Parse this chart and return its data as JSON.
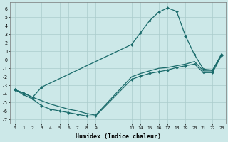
{
  "xlabel": "Humidex (Indice chaleur)",
  "bg_color": "#cce8e8",
  "grid_color": "#aacccc",
  "line_color": "#1a6b6b",
  "x_ticks": [
    0,
    1,
    2,
    3,
    4,
    5,
    6,
    7,
    8,
    9,
    13,
    14,
    15,
    16,
    17,
    18,
    19,
    20,
    21,
    22,
    23
  ],
  "ylim": [
    -7.5,
    6.8
  ],
  "xlim": [
    -0.5,
    23.5
  ],
  "line_upper_x": [
    0,
    1,
    2,
    3,
    13,
    14,
    15,
    16,
    17,
    18,
    19,
    20,
    21,
    22,
    23
  ],
  "line_upper_y": [
    -3.5,
    -3.9,
    -4.4,
    -3.2,
    1.8,
    3.2,
    4.6,
    5.6,
    6.1,
    5.7,
    2.8,
    0.6,
    -1.1,
    -1.2,
    0.6
  ],
  "line_mid_x": [
    0,
    1,
    2,
    3,
    4,
    5,
    6,
    7,
    8,
    9,
    13,
    14,
    15,
    16,
    17,
    18,
    19,
    20,
    21,
    22,
    23
  ],
  "line_mid_y": [
    -3.5,
    -3.9,
    -4.4,
    -4.8,
    -5.2,
    -5.5,
    -5.8,
    -6.0,
    -6.3,
    -6.5,
    -2.0,
    -1.6,
    -1.3,
    -1.0,
    -0.9,
    -0.7,
    -0.5,
    -0.2,
    -1.3,
    -1.3,
    0.7
  ],
  "line_lower_x": [
    0,
    1,
    2,
    3,
    4,
    5,
    6,
    7,
    8,
    9,
    13,
    14,
    15,
    16,
    17,
    18,
    19,
    20,
    21,
    22,
    23
  ],
  "line_lower_y": [
    -3.5,
    -4.1,
    -4.6,
    -5.4,
    -5.8,
    -6.0,
    -6.2,
    -6.4,
    -6.6,
    -6.6,
    -2.3,
    -1.9,
    -1.6,
    -1.4,
    -1.2,
    -0.9,
    -0.7,
    -0.5,
    -1.5,
    -1.5,
    0.5
  ]
}
